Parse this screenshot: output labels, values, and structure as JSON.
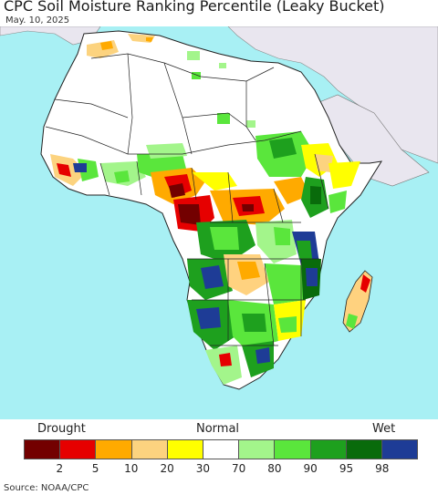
{
  "title": "CPC Soil Moisture Ranking Percentile (Leaky Bucket)",
  "date": "May. 10, 2025",
  "legend": {
    "left_label": "Drought",
    "center_label": "Normal",
    "right_label": "Wet",
    "classes": [
      {
        "color": "#730000"
      },
      {
        "color": "#e60000"
      },
      {
        "color": "#ffaa00"
      },
      {
        "color": "#fcd37f"
      },
      {
        "color": "#ffff00"
      },
      {
        "color": "#ffffff"
      },
      {
        "color": "#a3f58b"
      },
      {
        "color": "#5ae63c"
      },
      {
        "color": "#1ea01e"
      },
      {
        "color": "#096b0b"
      },
      {
        "color": "#1e3c96"
      }
    ],
    "ticks": [
      "2",
      "5",
      "10",
      "20",
      "30",
      "70",
      "80",
      "90",
      "95",
      "98"
    ]
  },
  "source": "Source: NOAA/CPC",
  "colors": {
    "ocean": "#a8f0f4",
    "land_background": "#ffffff",
    "outside_domain": "#e9e6ef",
    "borders": "#222222"
  }
}
